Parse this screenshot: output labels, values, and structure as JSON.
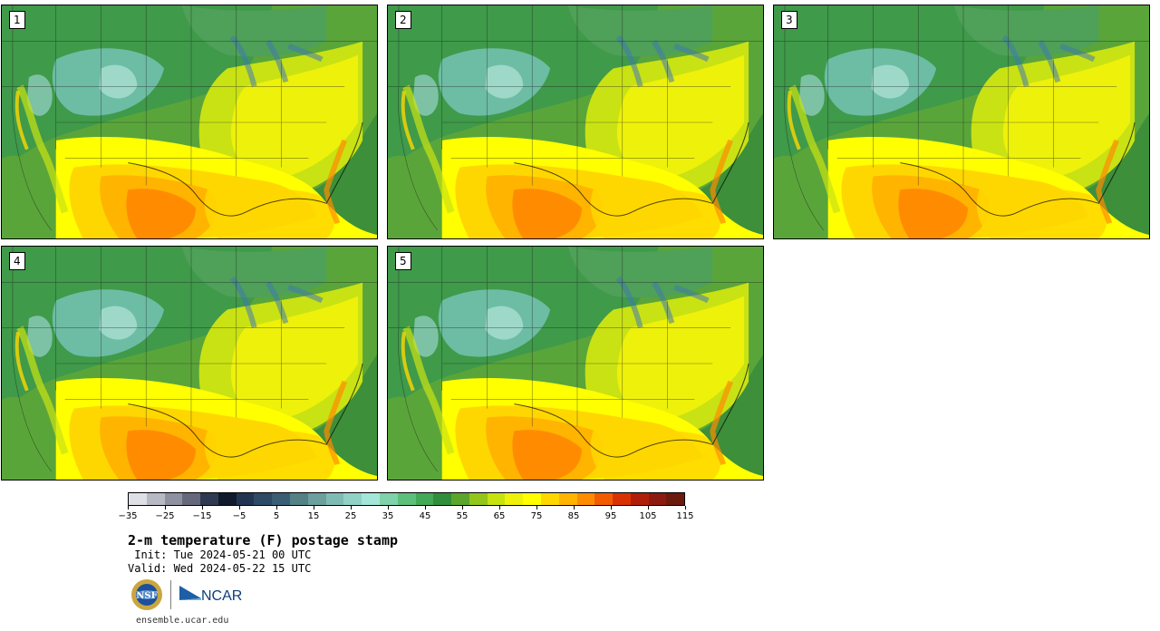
{
  "panels": [
    {
      "label": "1"
    },
    {
      "label": "2"
    },
    {
      "label": "3"
    },
    {
      "label": "4"
    },
    {
      "label": "5"
    }
  ],
  "colorbar": {
    "colors": [
      "#dfe0e5",
      "#b7b9c3",
      "#8d91a0",
      "#66697c",
      "#2e3a52",
      "#0f1b2c",
      "#213551",
      "#2e4a65",
      "#3c5e74",
      "#548086",
      "#6c9f9e",
      "#7fbbb5",
      "#91d2c6",
      "#a2e7d8",
      "#7fd2aa",
      "#5cbf7c",
      "#42a957",
      "#2f8e3b",
      "#5ba52a",
      "#93c51a",
      "#c8e20e",
      "#eef10a",
      "#ffff00",
      "#ffd700",
      "#ffb400",
      "#ff8c00",
      "#f25c00",
      "#d83200",
      "#b01e0a",
      "#8c1a10",
      "#6b1a0e"
    ],
    "tick_labels": [
      "−35",
      "−25",
      "−15",
      "−5",
      "5",
      "15",
      "25",
      "35",
      "45",
      "55",
      "65",
      "75",
      "85",
      "95",
      "105",
      "115"
    ]
  },
  "title": "2-m temperature (F) postage stamp",
  "init": " Init: Tue 2024-05-21 00 UTC",
  "valid": "Valid: Wed 2024-05-22 15 UTC",
  "logos": {
    "nsf": "NSF",
    "ncar": "NCAR"
  },
  "url": "ensemble.ucar.edu"
}
